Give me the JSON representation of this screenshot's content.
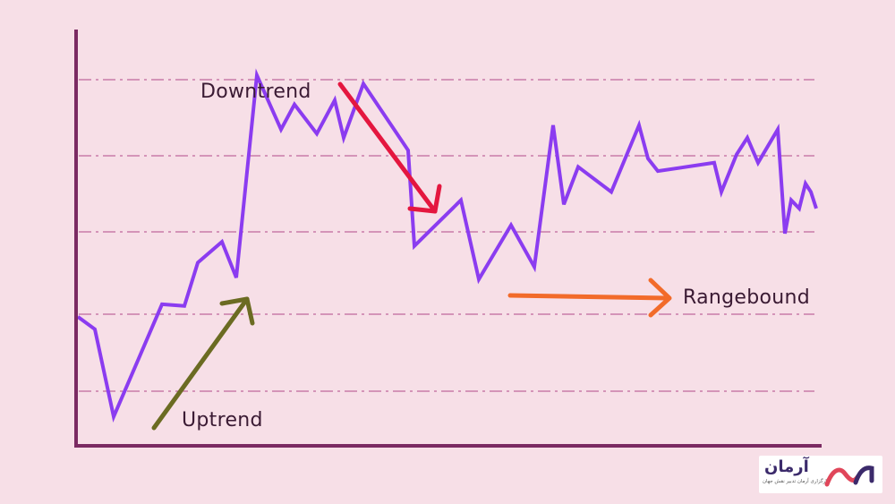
{
  "labels": {
    "downtrend": "Downtrend",
    "uptrend": "Uptrend",
    "rangebound": "Rangebound"
  },
  "colors": {
    "background": "#f7dfe7",
    "axis": "#7b2a62",
    "gridline": "#b04a8a",
    "price_line": "#8b3cf0",
    "downtrend_arrow": "#e4173f",
    "uptrend_arrow": "#6b6b22",
    "rangebound_arrow": "#f26b2a"
  },
  "logo": {
    "brand_text": "آرمان",
    "tagline": "کارگزاری آرمان تدبیر نقش جهان",
    "icon": "arman-wave-logo-icon"
  },
  "chart_data": {
    "type": "line",
    "grid": "horizontal dash-dot lines",
    "series": [
      {
        "values": [
          1.55,
          1.4,
          0.35,
          1.05,
          1.7,
          1.68,
          2.2,
          2.45,
          2.02,
          4.45,
          3.8,
          4.1,
          3.75,
          4.15,
          3.7,
          4.35,
          3.55,
          2.4,
          2.95,
          2.0,
          2.65,
          2.15,
          3.85,
          2.9,
          3.35,
          3.05,
          3.85,
          3.45,
          3.3,
          3.4,
          3.05,
          3.5,
          3.7,
          3.4,
          3.8,
          2.55,
          2.95,
          2.85,
          3.15,
          3.05,
          2.85
        ]
      }
    ]
  }
}
